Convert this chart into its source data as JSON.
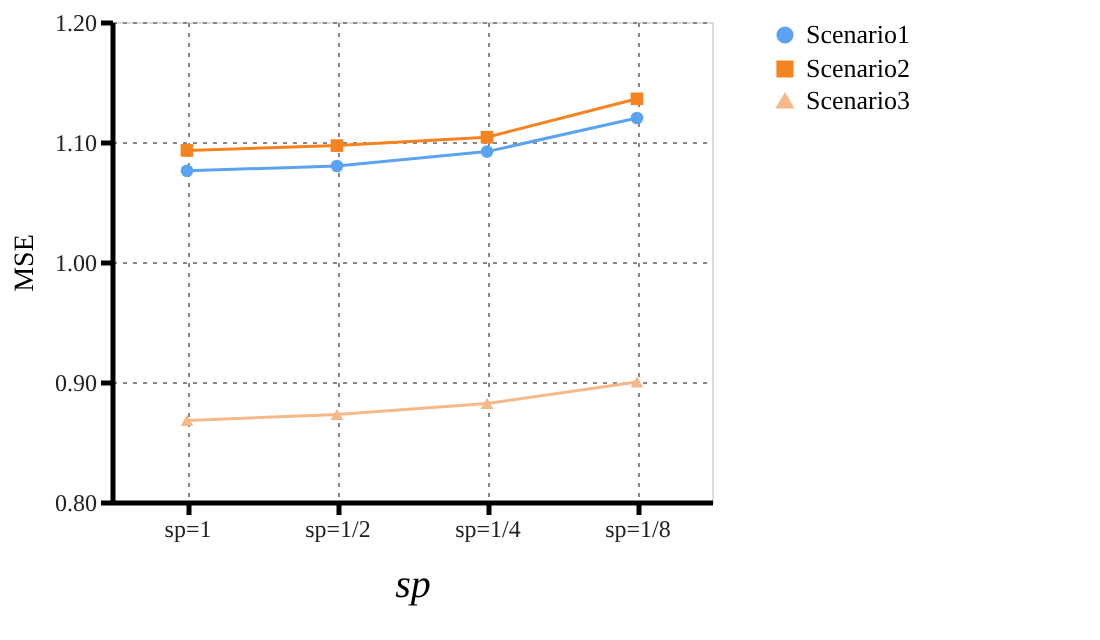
{
  "chart_data": {
    "type": "line",
    "xlabel": "sp",
    "ylabel": "MSE",
    "categories": [
      "sp=1",
      "sp=1/2",
      "sp=1/4",
      "sp=1/8"
    ],
    "series": [
      {
        "name": "Scenario1",
        "color": "#5ba3f0",
        "marker": "circle",
        "values": [
          1.076,
          1.08,
          1.092,
          1.12
        ]
      },
      {
        "name": "Scenario2",
        "color": "#f5831f",
        "marker": "square",
        "values": [
          1.093,
          1.097,
          1.104,
          1.136
        ]
      },
      {
        "name": "Scenario3",
        "color": "#f5b888",
        "marker": "triangle",
        "values": [
          0.868,
          0.873,
          0.882,
          0.9
        ]
      }
    ],
    "ylim": [
      0.8,
      1.2
    ],
    "yticks": [
      {
        "value": 0.8,
        "label": "0.80"
      },
      {
        "value": 0.9,
        "label": "0.90"
      },
      {
        "value": 1.0,
        "label": "1.00"
      },
      {
        "value": 1.1,
        "label": "1.10"
      },
      {
        "value": 1.2,
        "label": "1.20"
      }
    ],
    "grid": true,
    "legend": "right",
    "line_style": "solid"
  }
}
